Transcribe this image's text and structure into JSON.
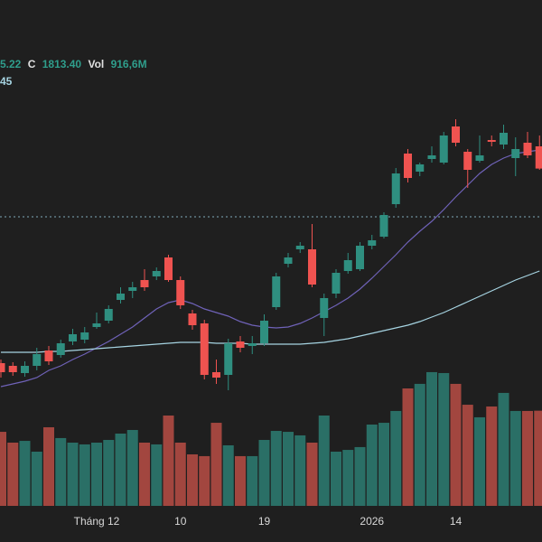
{
  "chart_data": {
    "type": "candlestick",
    "legend": {
      "open_tail": "5.22",
      "close_label": "C",
      "close": "1813.40",
      "volume_label": "Vol",
      "volume": "916,6M",
      "ma_tail": "45"
    },
    "categories": [
      null,
      null,
      null,
      null,
      null,
      null,
      null,
      null,
      "Tháng 12",
      null,
      null,
      null,
      null,
      null,
      null,
      "10",
      null,
      null,
      null,
      null,
      null,
      null,
      "19",
      null,
      null,
      null,
      null,
      null,
      null,
      null,
      null,
      "2026",
      null,
      null,
      null,
      null,
      null,
      null,
      "14",
      null,
      null,
      null,
      null,
      null,
      null,
      null
    ],
    "open": [
      1598,
      1595,
      1587,
      1595,
      1612,
      1607,
      1622,
      1624,
      1638,
      1645,
      1668,
      1678,
      1690,
      1694,
      1715,
      1690,
      1653,
      1642,
      1588,
      1585,
      1622,
      1617,
      1620,
      1660,
      1708,
      1724,
      1724,
      1648,
      1675,
      1700,
      1702,
      1728,
      1738,
      1774,
      1830,
      1810,
      1824,
      1820,
      1860,
      1832,
      1822,
      1845,
      1840,
      1825,
      1842,
      1838
    ],
    "high": [
      1602,
      1599,
      1600,
      1615,
      1617,
      1624,
      1636,
      1638,
      1654,
      1662,
      1682,
      1688,
      1702,
      1704,
      1718,
      1694,
      1657,
      1646,
      1602,
      1625,
      1628,
      1628,
      1652,
      1698,
      1720,
      1732,
      1752,
      1675,
      1702,
      1720,
      1732,
      1740,
      1765,
      1814,
      1835,
      1820,
      1838,
      1854,
      1868,
      1835,
      1850,
      1850,
      1862,
      1848,
      1854,
      1850
    ],
    "low": [
      1582,
      1584,
      1583,
      1590,
      1596,
      1604,
      1618,
      1620,
      1636,
      1642,
      1664,
      1670,
      1678,
      1690,
      1688,
      1658,
      1635,
      1580,
      1575,
      1568,
      1610,
      1608,
      1617,
      1657,
      1704,
      1720,
      1682,
      1628,
      1670,
      1697,
      1700,
      1724,
      1736,
      1770,
      1798,
      1805,
      1820,
      1818,
      1838,
      1792,
      1820,
      1838,
      1835,
      1805,
      1825,
      1812
    ],
    "close": [
      1588,
      1588,
      1595,
      1608,
      1600,
      1620,
      1630,
      1632,
      1642,
      1658,
      1675,
      1682,
      1682,
      1700,
      1690,
      1662,
      1640,
      1585,
      1582,
      1620,
      1615,
      1620,
      1645,
      1694,
      1715,
      1728,
      1685,
      1670,
      1698,
      1712,
      1728,
      1734,
      1762,
      1808,
      1803,
      1818,
      1828,
      1850,
      1842,
      1812,
      1828,
      1843,
      1853,
      1835,
      1828,
      1813.4
    ],
    "volume": [
      713,
      609,
      626,
      522,
      757,
      653,
      609,
      592,
      609,
      635,
      696,
      731,
      609,
      592,
      870,
      609,
      496,
      479,
      800,
      583,
      479,
      479,
      635,
      722,
      713,
      679,
      609,
      870,
      522,
      539,
      566,
      783,
      800,
      914,
      1131,
      1175,
      1288,
      1279,
      1175,
      974,
      853,
      957,
      1088,
      914,
      914,
      916.6
    ],
    "moving_averages": [
      {
        "color": "#6f62b8",
        "values": [
          1572,
          1575,
          1578,
          1582,
          1590,
          1595,
          1602,
          1608,
          1615,
          1622,
          1630,
          1638,
          1648,
          1658,
          1665,
          1668,
          1664,
          1658,
          1654,
          1650,
          1644,
          1640,
          1638,
          1637,
          1638,
          1642,
          1648,
          1655,
          1662,
          1670,
          1680,
          1692,
          1705,
          1718,
          1732,
          1744,
          1755,
          1768,
          1782,
          1795,
          1808,
          1818,
          1825,
          1830,
          1832,
          1834
        ]
      },
      {
        "color": "#a6d4e2",
        "values": [
          1610,
          1610,
          1610,
          1610,
          1611,
          1611,
          1612,
          1613,
          1614,
          1615,
          1616,
          1617,
          1618,
          1619,
          1620,
          1621,
          1621,
          1621,
          1620,
          1620,
          1620,
          1619,
          1619,
          1619,
          1619,
          1619,
          1620,
          1621,
          1623,
          1625,
          1628,
          1631,
          1634,
          1637,
          1640,
          1644,
          1649,
          1654,
          1660,
          1666,
          1672,
          1678,
          1684,
          1690,
          1695,
          1700
        ]
      }
    ],
    "reference_line": 1760,
    "up_color": "#2f8f80",
    "down_color": "#ef5350",
    "volume_up_color": "#2a6f66",
    "volume_down_color": "#a2463f",
    "value_color": "#2f9e8c",
    "label_color": "#e0e0e0",
    "ma_label_color": "#a6d4e2",
    "ylim": [
      1400,
      2000
    ],
    "volume_ylim": [
      0,
      1740
    ]
  }
}
